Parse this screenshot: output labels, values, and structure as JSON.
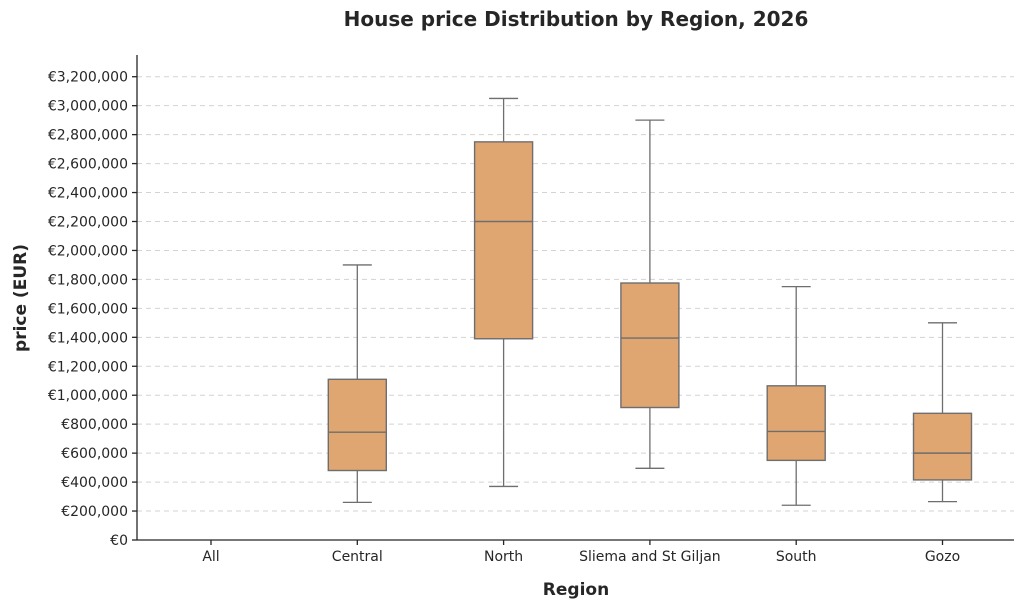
{
  "chart_data": {
    "type": "box",
    "title": "House price Distribution by Region, 2026",
    "xlabel": "Region",
    "ylabel": "price (EUR)",
    "ylim": [
      0,
      3300000
    ],
    "yticks": [
      0,
      200000,
      400000,
      600000,
      800000,
      1000000,
      1200000,
      1400000,
      1600000,
      1800000,
      2000000,
      2200000,
      2400000,
      2600000,
      2800000,
      3000000,
      3200000
    ],
    "ytick_labels": [
      "€0",
      "€200,000",
      "€400,000",
      "€600,000",
      "€800,000",
      "€1,000,000",
      "€1,200,000",
      "€1,400,000",
      "€1,600,000",
      "€1,800,000",
      "€2,000,000",
      "€2,200,000",
      "€2,400,000",
      "€2,600,000",
      "€2,800,000",
      "€3,000,000",
      "€3,200,000"
    ],
    "grid": true,
    "box_color": "#e0a672",
    "line_color": "#6e6e6e",
    "categories": [
      "All",
      "Central",
      "North",
      "Sliema and St Giljan",
      "South",
      "Gozo"
    ],
    "boxes": [
      null,
      {
        "whisker_low": 260000,
        "q1": 480000,
        "median": 745000,
        "q3": 1110000,
        "whisker_high": 1900000
      },
      {
        "whisker_low": 370000,
        "q1": 1390000,
        "median": 2200000,
        "q3": 2750000,
        "whisker_high": 3050000
      },
      {
        "whisker_low": 495000,
        "q1": 915000,
        "median": 1395000,
        "q3": 1775000,
        "whisker_high": 2900000
      },
      {
        "whisker_low": 240000,
        "q1": 550000,
        "median": 750000,
        "q3": 1065000,
        "whisker_high": 1750000
      },
      {
        "whisker_low": 265000,
        "q1": 415000,
        "median": 600000,
        "q3": 875000,
        "whisker_high": 1500000
      }
    ]
  }
}
